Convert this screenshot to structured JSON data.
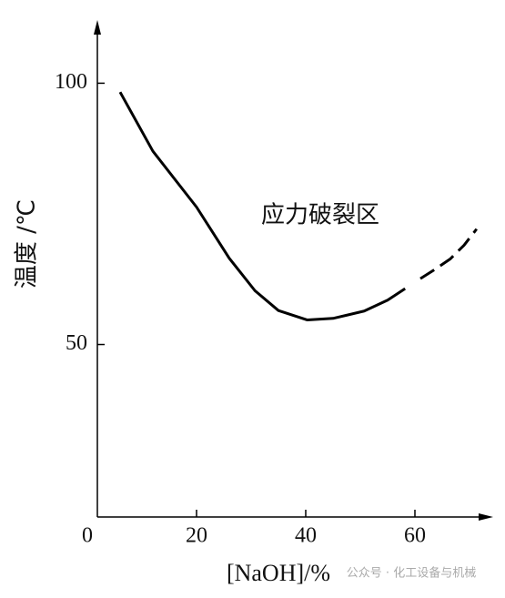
{
  "chart_data": {
    "type": "line",
    "xlabel": "[NaOH]/%",
    "ylabel": "温度 /℃",
    "annotation": "应力破裂区",
    "watermark": "公众号 · 化工设备与机械",
    "xlim": [
      0,
      72
    ],
    "xticks": [
      0,
      20,
      40,
      60
    ],
    "ylim": [
      17,
      110
    ],
    "yticks": [
      50,
      100
    ],
    "series": [
      {
        "color": "#000000",
        "style": "solid",
        "x": [
          6,
          12,
          20,
          26,
          30.7,
          35,
          40.3,
          45,
          50.7,
          55,
          58.2
        ],
        "values": [
          98.3,
          87,
          76.3,
          66.5,
          60.3,
          56.5,
          54.7,
          55,
          56.4,
          58.5,
          60.7
        ]
      },
      {
        "color": "#000000",
        "style": "dashed",
        "x": [
          61,
          64,
          66.5,
          69,
          71.3
        ],
        "values": [
          62.6,
          64.6,
          66.4,
          69,
          72.1
        ]
      }
    ]
  }
}
